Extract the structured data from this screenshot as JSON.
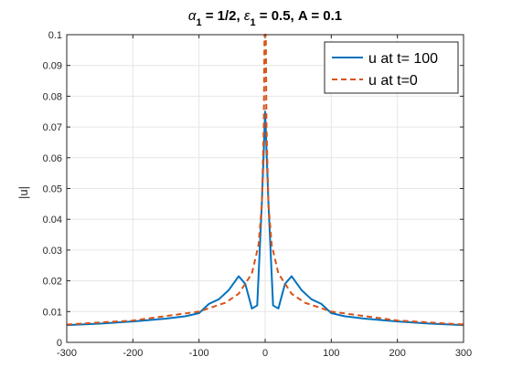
{
  "chart_data": {
    "type": "line",
    "title": {
      "alpha": "α",
      "alpha_sub": "1",
      "part1": " = 1/2, ",
      "eps": "ε",
      "eps_sub": "1",
      "part2": " = 0.5, A = 0.1"
    },
    "xlabel": "",
    "ylabel": "|u|",
    "xlim": [
      -300,
      300
    ],
    "ylim": [
      0,
      0.1
    ],
    "xticks": [
      -300,
      -200,
      -100,
      0,
      100,
      200,
      300
    ],
    "yticks": [
      0,
      0.01,
      0.02,
      0.03,
      0.04,
      0.05,
      0.06,
      0.07,
      0.08,
      0.09,
      0.1
    ],
    "grid": true,
    "legend": {
      "position": "top-right"
    },
    "series": [
      {
        "name": "u at t= 100",
        "color": "#0072BD",
        "style": "solid",
        "points": [
          [
            -300,
            0.0056
          ],
          [
            -250,
            0.0061
          ],
          [
            -200,
            0.0068
          ],
          [
            -150,
            0.0077
          ],
          [
            -120,
            0.0085
          ],
          [
            -100,
            0.0095
          ],
          [
            -85,
            0.0125
          ],
          [
            -70,
            0.014
          ],
          [
            -55,
            0.017
          ],
          [
            -40,
            0.0215
          ],
          [
            -30,
            0.019
          ],
          [
            -20,
            0.011
          ],
          [
            -12,
            0.012
          ],
          [
            -5,
            0.045
          ],
          [
            0,
            0.075
          ],
          [
            5,
            0.045
          ],
          [
            12,
            0.012
          ],
          [
            20,
            0.011
          ],
          [
            30,
            0.019
          ],
          [
            40,
            0.0215
          ],
          [
            55,
            0.017
          ],
          [
            70,
            0.014
          ],
          [
            85,
            0.0125
          ],
          [
            100,
            0.0095
          ],
          [
            120,
            0.0085
          ],
          [
            150,
            0.0077
          ],
          [
            200,
            0.0068
          ],
          [
            250,
            0.0061
          ],
          [
            300,
            0.0056
          ]
        ]
      },
      {
        "name": "u at t=0",
        "color": "#D95319",
        "style": "dashed",
        "points": [
          [
            -300,
            0.0058
          ],
          [
            -200,
            0.0071
          ],
          [
            -100,
            0.01
          ],
          [
            -60,
            0.0129
          ],
          [
            -40,
            0.0158
          ],
          [
            -20,
            0.0224
          ],
          [
            -10,
            0.0316
          ],
          [
            -5,
            0.0447
          ],
          [
            -2,
            0.0707
          ],
          [
            -1,
            0.1
          ],
          [
            1,
            0.1
          ],
          [
            2,
            0.0707
          ],
          [
            5,
            0.0447
          ],
          [
            10,
            0.0316
          ],
          [
            20,
            0.0224
          ],
          [
            40,
            0.0158
          ],
          [
            60,
            0.0129
          ],
          [
            100,
            0.01
          ],
          [
            200,
            0.0071
          ],
          [
            300,
            0.0058
          ]
        ]
      }
    ]
  }
}
